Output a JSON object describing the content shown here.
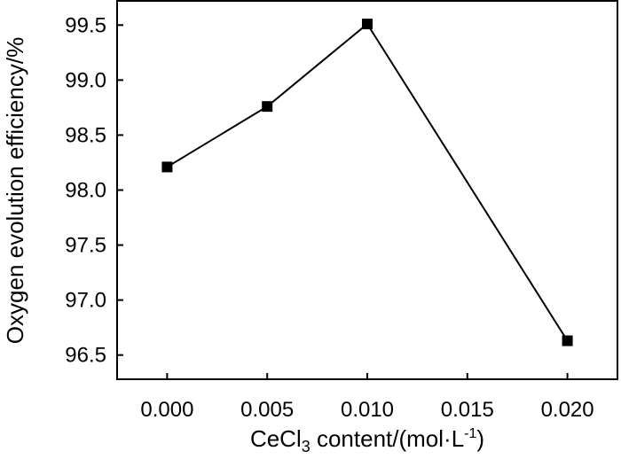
{
  "chart_data": {
    "type": "line",
    "xlabel": "CeCl3 content/(mol·L-1)",
    "xlabel_parts": {
      "base": "CeCl",
      "sub": "3",
      "mid": " content/(mol·L",
      "sup": "-1",
      "end": ")"
    },
    "ylabel": "Oxygen evolution efficiency/%",
    "xlim": [
      -0.0025,
      0.0225
    ],
    "ylim": [
      96.28,
      99.72
    ],
    "x_ticks": [
      "0.000",
      "0.005",
      "0.010",
      "0.015",
      "0.020"
    ],
    "y_ticks": [
      "96.5",
      "97.0",
      "97.5",
      "98.0",
      "98.5",
      "99.0",
      "99.5"
    ],
    "grid": false,
    "series": [
      {
        "x": [
          0.0,
          0.005,
          0.01,
          0.02
        ],
        "y": [
          98.21,
          98.76,
          99.51,
          96.63
        ],
        "marker": "square",
        "color": "#000000"
      }
    ]
  }
}
